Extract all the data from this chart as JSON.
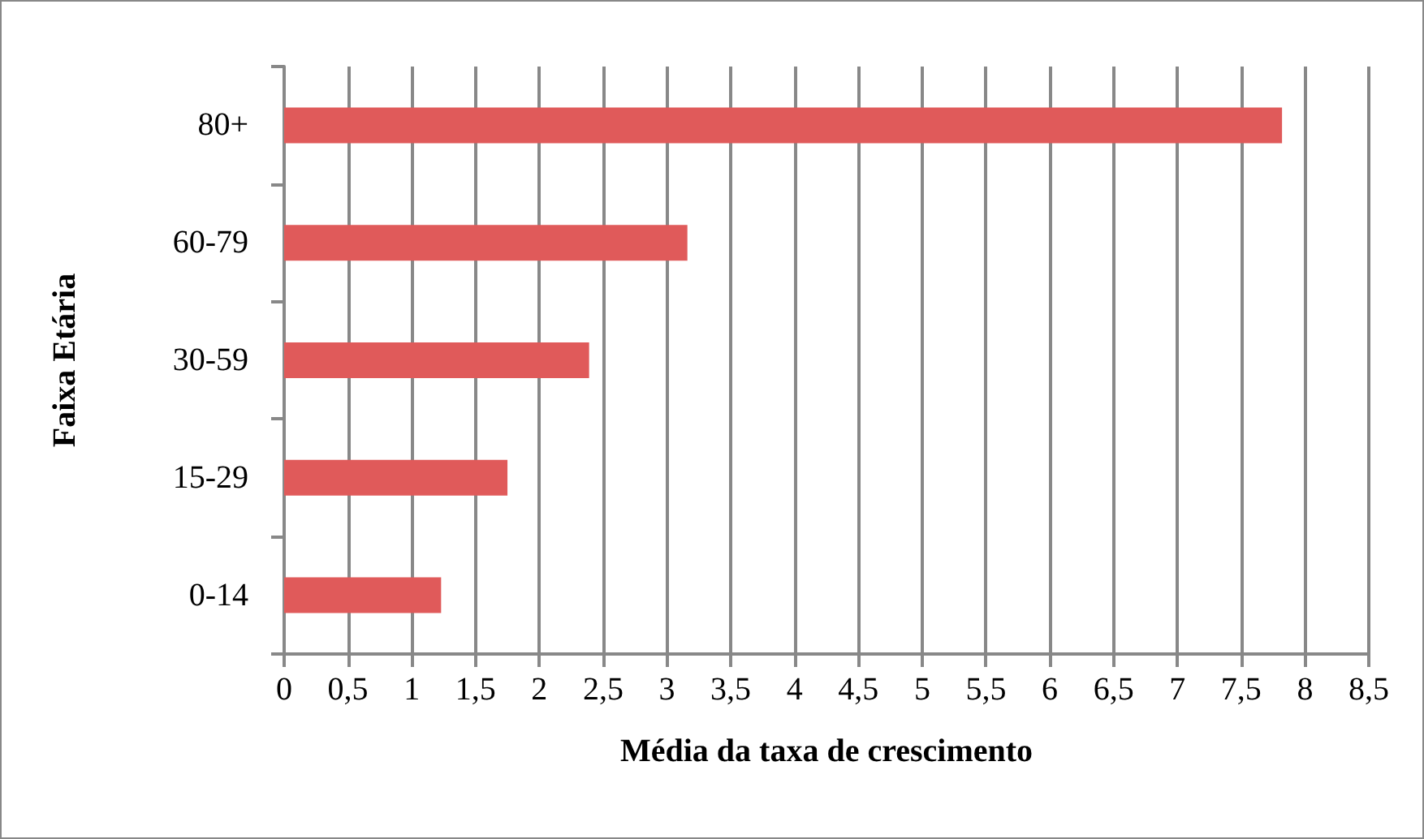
{
  "chart_data": {
    "type": "bar",
    "orientation": "horizontal",
    "xlabel": "Média da taxa de crescimento",
    "ylabel": "Faixa Etária",
    "categories": [
      "80+",
      "60-79",
      "30-59",
      "15-29",
      "0-14"
    ],
    "values": [
      7.82,
      3.16,
      2.39,
      1.75,
      1.23
    ],
    "color": "#e05a5a",
    "xlim": [
      0,
      8.5
    ],
    "xticks": [
      0,
      {
        "value": 0.5,
        "label": "0,5"
      },
      1,
      {
        "value": 1.5,
        "label": "1,5"
      },
      2,
      {
        "value": 2.5,
        "label": "2,5"
      },
      3,
      {
        "value": 3.5,
        "label": "3,5"
      },
      4,
      {
        "value": 4.5,
        "label": "4,5"
      },
      5,
      {
        "value": 5.5,
        "label": "5,5"
      },
      6,
      {
        "value": 6.5,
        "label": "6,5"
      },
      7,
      {
        "value": 7.5,
        "label": "7,5"
      },
      8,
      {
        "value": 8.5,
        "label": "8,5"
      }
    ],
    "grid": "x"
  }
}
